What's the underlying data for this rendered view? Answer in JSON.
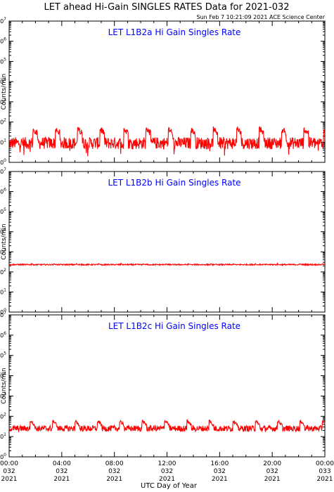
{
  "header": {
    "title": "LET ahead Hi-Gain SINGLES RATES Data for 2021-032",
    "timestamp": "Sun Feb  7 10:21:09 2021 ACE Science Center"
  },
  "x_axis_label": "UTC Day of Year",
  "colors": {
    "series": "#ff0000",
    "panel_title": "#0000ff",
    "axes": "#000000"
  },
  "chart_data": [
    {
      "type": "line",
      "title": "LET L1B2a Hi Gain Singles Rate",
      "ylabel": "Counts/min",
      "yscale": "log",
      "ylim": [
        1,
        10000000
      ],
      "xlim": [
        0,
        24
      ],
      "x_unit": "hours UTC",
      "grid": false,
      "series": [
        {
          "baseline": 9,
          "noise": 0.3,
          "spike_value": 45,
          "spike_hours": [
            1.8,
            3.5,
            5.2,
            6.9,
            8.7,
            10.4,
            12.1,
            13.8,
            15.5,
            17.3,
            19.0,
            20.7,
            22.4,
            23.9
          ]
        }
      ]
    },
    {
      "type": "line",
      "title": "LET L1B2b Hi Gain Singles Rate",
      "ylabel": "Counts/min",
      "yscale": "log",
      "ylim": [
        1,
        10000000
      ],
      "xlim": [
        0,
        24
      ],
      "x_unit": "hours UTC",
      "grid": false,
      "series": [
        {
          "baseline": 230,
          "noise": 0.03,
          "spike_value": 260,
          "spike_hours": [
            1.7,
            3.4,
            5.1,
            6.8,
            8.5,
            10.2,
            11.9,
            13.6,
            15.3,
            17.0,
            18.7,
            20.4,
            22.1,
            23.8
          ]
        }
      ]
    },
    {
      "type": "line",
      "title": "LET L1B2c Hi Gain Singles Rate",
      "ylabel": "Counts/min",
      "yscale": "log",
      "ylim": [
        1,
        10000000
      ],
      "xlim": [
        0,
        24
      ],
      "x_unit": "hours UTC",
      "grid": false,
      "series": [
        {
          "baseline": 25,
          "noise": 0.15,
          "spike_value": 60,
          "spike_hours": [
            1.6,
            3.3,
            5.0,
            6.7,
            8.4,
            10.1,
            11.8,
            13.5,
            15.2,
            17.0,
            18.7,
            20.4,
            22.1,
            23.8
          ]
        }
      ]
    }
  ],
  "y_ticks": [
    {
      "base": "10",
      "exp": "0"
    },
    {
      "base": "10",
      "exp": "1"
    },
    {
      "base": "10",
      "exp": "2"
    },
    {
      "base": "10",
      "exp": "3"
    },
    {
      "base": "10",
      "exp": "4"
    },
    {
      "base": "10",
      "exp": "5"
    },
    {
      "base": "10",
      "exp": "6"
    },
    {
      "base": "10",
      "exp": "7"
    }
  ],
  "x_ticks": [
    {
      "hour": 0,
      "time": "00:00",
      "doy": "032",
      "year": "2021"
    },
    {
      "hour": 4,
      "time": "04:00",
      "doy": "032",
      "year": "2021"
    },
    {
      "hour": 8,
      "time": "08:00",
      "doy": "032",
      "year": "2021"
    },
    {
      "hour": 12,
      "time": "12:00",
      "doy": "032",
      "year": "2021"
    },
    {
      "hour": 16,
      "time": "16:00",
      "doy": "032",
      "year": "2021"
    },
    {
      "hour": 20,
      "time": "20:00",
      "doy": "032",
      "year": "2021"
    },
    {
      "hour": 24,
      "time": "00:00",
      "doy": "033",
      "year": "2021"
    }
  ]
}
